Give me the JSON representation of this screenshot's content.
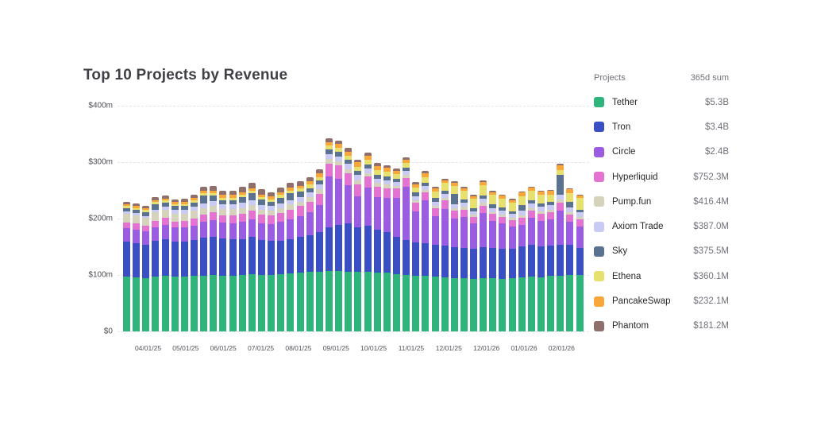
{
  "header": {
    "title": "Top 10 Projects by Revenue"
  },
  "legend": {
    "col_project": "Projects",
    "col_sum": "365d sum",
    "items": [
      {
        "label": "Tether",
        "sum": "$5.3B",
        "color": "#2fb57c"
      },
      {
        "label": "Tron",
        "sum": "$3.4B",
        "color": "#3b4fc4"
      },
      {
        "label": "Circle",
        "sum": "$2.4B",
        "color": "#9a5ce0"
      },
      {
        "label": "Hyperliquid",
        "sum": "$752.3M",
        "color": "#e472d0"
      },
      {
        "label": "Pump.fun",
        "sum": "$416.4M",
        "color": "#d6d3bd"
      },
      {
        "label": "Axiom Trade",
        "sum": "$387.0M",
        "color": "#c9cbf5"
      },
      {
        "label": "Sky",
        "sum": "$375.5M",
        "color": "#5a7190"
      },
      {
        "label": "Ethena",
        "sum": "$360.1M",
        "color": "#e6e06e"
      },
      {
        "label": "PancakeSwap",
        "sum": "$232.1M",
        "color": "#f9a63a"
      },
      {
        "label": "Phantom",
        "sum": "$181.2M",
        "color": "#8f6f6c"
      }
    ]
  },
  "chart_data": {
    "type": "bar",
    "stacked": true,
    "title": "Top 10 Projects by Revenue",
    "unit": "$m weekly revenue",
    "ylim": [
      0,
      400
    ],
    "grid": "horizontal-dashed",
    "legend_position": "right",
    "y_ticks": [
      "$400m",
      "$300m",
      "$200m",
      "$100m",
      "$0"
    ],
    "x_tick_labels": [
      "04/01/25",
      "05/01/25",
      "06/01/25",
      "07/01/25",
      "08/01/25",
      "09/01/25",
      "10/01/25",
      "11/01/25",
      "12/01/25",
      "12/01/26",
      "01/01/26",
      "02/01/26"
    ],
    "series": [
      {
        "name": "Tether",
        "color": "#2fb57c",
        "values": [
          97,
          96,
          95,
          97,
          98,
          97,
          97,
          98,
          99,
          100,
          99,
          99,
          100,
          101,
          100,
          100,
          102,
          103,
          104,
          105,
          106,
          107,
          107,
          106,
          105,
          105,
          104,
          104,
          101,
          100,
          98,
          99,
          97,
          96,
          95,
          94,
          93,
          95,
          94,
          93,
          94,
          96,
          97,
          96,
          98,
          99,
          100,
          100
        ]
      },
      {
        "name": "Tron",
        "color": "#3b4fc4",
        "values": [
          62,
          61,
          59,
          63,
          65,
          62,
          62,
          64,
          67,
          68,
          66,
          65,
          64,
          66,
          62,
          60,
          59,
          61,
          63,
          66,
          70,
          78,
          82,
          85,
          80,
          82,
          76,
          72,
          66,
          62,
          60,
          58,
          57,
          56,
          55,
          54,
          53,
          55,
          54,
          53,
          52,
          55,
          56,
          55,
          54,
          55,
          54,
          48
        ]
      },
      {
        "name": "Circle",
        "color": "#9a5ce0",
        "values": [
          24,
          24,
          23,
          25,
          26,
          25,
          25,
          26,
          28,
          29,
          28,
          28,
          30,
          31,
          30,
          30,
          33,
          35,
          37,
          40,
          48,
          90,
          82,
          68,
          55,
          68,
          58,
          60,
          70,
          95,
          55,
          75,
          50,
          65,
          50,
          55,
          45,
          60,
          48,
          45,
          40,
          38,
          48,
          45,
          46,
          60,
          40,
          38
        ]
      },
      {
        "name": "Hyperliquid",
        "color": "#e472d0",
        "values": [
          10,
          10,
          10,
          11,
          12,
          11,
          12,
          12,
          13,
          14,
          13,
          14,
          15,
          16,
          15,
          15,
          16,
          17,
          18,
          19,
          20,
          22,
          23,
          22,
          21,
          20,
          19,
          18,
          16,
          15,
          15,
          14,
          14,
          15,
          14,
          13,
          12,
          13,
          12,
          12,
          11,
          12,
          13,
          12,
          13,
          14,
          13,
          12
        ]
      },
      {
        "name": "Pump.fun",
        "color": "#d6d3bd",
        "values": [
          16,
          15,
          14,
          15,
          14,
          14,
          13,
          14,
          12,
          12,
          11,
          11,
          10,
          10,
          9,
          9,
          9,
          9,
          8,
          8,
          8,
          8,
          7,
          7,
          7,
          6,
          6,
          6,
          5,
          5,
          5,
          5,
          5,
          5,
          5,
          5,
          4,
          5,
          4,
          4,
          4,
          5,
          5,
          5,
          5,
          6,
          5,
          5
        ]
      },
      {
        "name": "Axiom Trade",
        "color": "#c9cbf5",
        "values": [
          4,
          4,
          4,
          5,
          6,
          6,
          7,
          7,
          8,
          8,
          8,
          8,
          9,
          9,
          8,
          8,
          8,
          8,
          8,
          8,
          8,
          9,
          9,
          9,
          9,
          8,
          8,
          8,
          7,
          7,
          7,
          7,
          7,
          7,
          7,
          7,
          6,
          7,
          7,
          7,
          7,
          8,
          8,
          8,
          8,
          9,
          8,
          8
        ]
      },
      {
        "name": "Sky",
        "color": "#5a7190",
        "values": [
          6,
          6,
          7,
          9,
          7,
          7,
          7,
          7,
          14,
          10,
          8,
          8,
          10,
          12,
          10,
          8,
          10,
          12,
          10,
          8,
          8,
          8,
          8,
          8,
          7,
          7,
          7,
          7,
          6,
          6,
          6,
          6,
          6,
          6,
          18,
          6,
          6,
          6,
          6,
          6,
          5,
          10,
          6,
          6,
          5,
          35,
          10,
          5
        ]
      },
      {
        "name": "Ethena",
        "color": "#e6e06e",
        "values": [
          3,
          3,
          3,
          4,
          4,
          3,
          3,
          4,
          4,
          4,
          4,
          4,
          4,
          4,
          4,
          4,
          5,
          5,
          5,
          6,
          6,
          7,
          7,
          7,
          8,
          8,
          8,
          8,
          8,
          9,
          9,
          10,
          12,
          13,
          14,
          15,
          16,
          18,
          17,
          16,
          15,
          16,
          16,
          15,
          14,
          8,
          15,
          20
        ]
      },
      {
        "name": "PancakeSwap",
        "color": "#f9a63a",
        "values": [
          4,
          4,
          4,
          4,
          4,
          4,
          4,
          4,
          5,
          5,
          5,
          5,
          5,
          5,
          5,
          5,
          5,
          5,
          5,
          6,
          6,
          7,
          7,
          7,
          8,
          8,
          7,
          7,
          6,
          6,
          6,
          6,
          5,
          5,
          5,
          5,
          5,
          6,
          5,
          5,
          5,
          6,
          6,
          6,
          6,
          8,
          7,
          5
        ]
      },
      {
        "name": "Phantom",
        "color": "#8f6f6c",
        "values": [
          4,
          4,
          4,
          5,
          5,
          5,
          5,
          6,
          7,
          8,
          8,
          8,
          9,
          10,
          9,
          8,
          8,
          9,
          8,
          8,
          7,
          7,
          6,
          6,
          5,
          5,
          5,
          5,
          4,
          4,
          4,
          4,
          3,
          3,
          3,
          3,
          2,
          3,
          2,
          2,
          2,
          2,
          2,
          2,
          2,
          3,
          2,
          2
        ]
      }
    ]
  }
}
